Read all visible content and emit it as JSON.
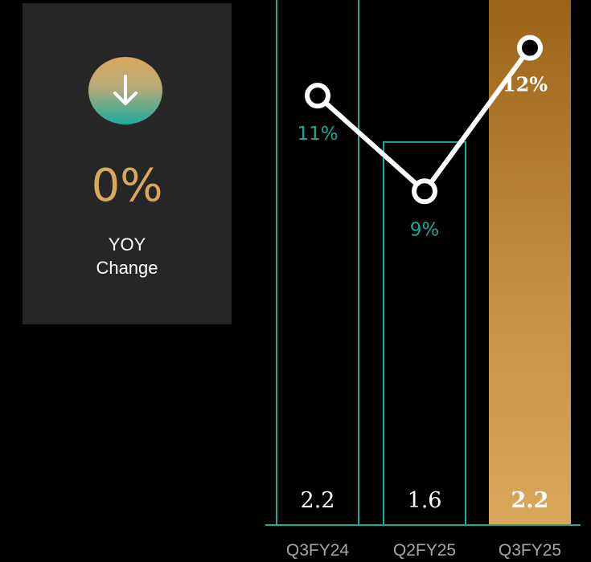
{
  "kpi": {
    "icon": "arrow-down-icon",
    "value": "0%",
    "label_line1": "YOY",
    "label_line2": "Change"
  },
  "colors": {
    "teal": "#1aaa9c",
    "gold": "#d9a85c",
    "gold_dark": "#9a6318",
    "card_bg": "#262626",
    "background": "#000000"
  },
  "chart_data": {
    "type": "bar",
    "categories": [
      "Q3FY24",
      "Q2FY25",
      "Q3FY25"
    ],
    "values": [
      2.2,
      1.6,
      2.2
    ],
    "value_labels": [
      "2.2",
      "1.6",
      "2.2"
    ],
    "highlight_index": 2,
    "ylim": [
      0,
      2.2
    ],
    "line_series": {
      "values": [
        11,
        9,
        12
      ],
      "labels": [
        "11%",
        "9%",
        "12%"
      ],
      "ylim": [
        8.3,
        13
      ]
    },
    "title": "",
    "xlabel": "",
    "ylabel": ""
  }
}
